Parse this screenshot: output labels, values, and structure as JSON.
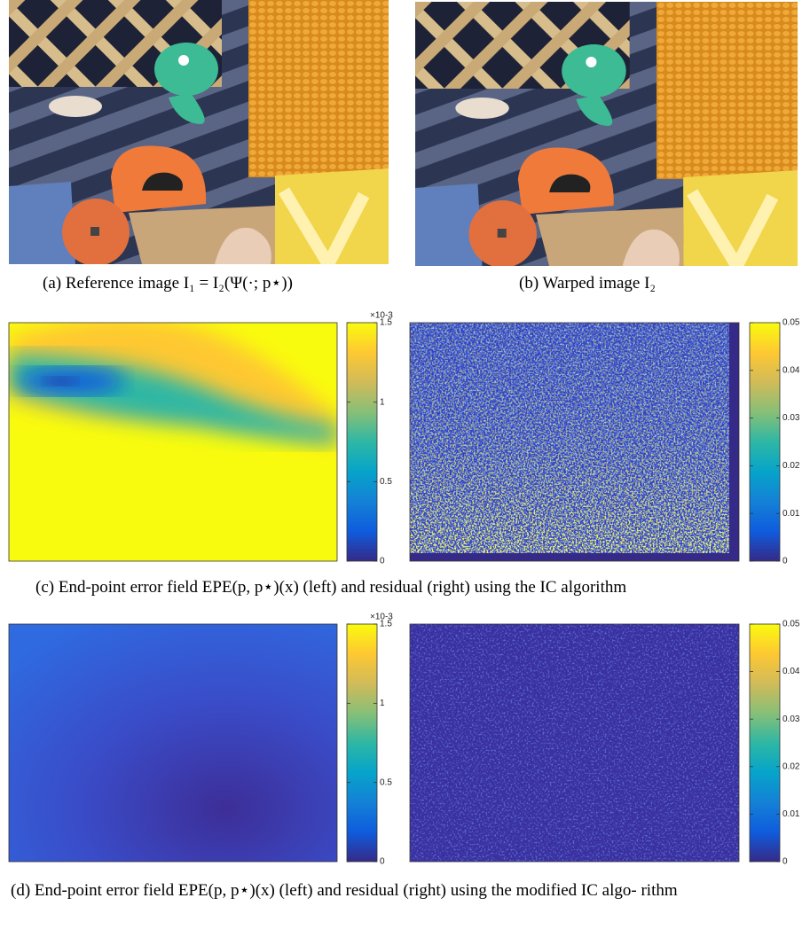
{
  "captions": {
    "a": "(a) Reference image I₁ = I₂(Ψ(·; p⋆))",
    "b": "(b) Warped image I₂",
    "c": "(c) End-point error field EPE(p, p⋆)(x) (left) and residual (right) using the IC algorithm",
    "d": "(d) End-point error field EPE(p, p⋆)(x) (left) and residual (right) using the modified IC algo- rithm"
  },
  "colorbars": [
    {
      "multiplier": "×10-3",
      "lim": [
        0,
        1.5
      ],
      "ticks": [
        0,
        0.5,
        1,
        1.5
      ]
    },
    {
      "lim": [
        0,
        0.05
      ],
      "ticks": [
        0,
        0.01,
        0.02,
        0.03,
        0.04,
        0.05
      ]
    },
    {
      "multiplier": "×10-3",
      "lim": [
        0,
        1.5
      ],
      "ticks": [
        0,
        0.5,
        1,
        1.5
      ]
    },
    {
      "lim": [
        0,
        0.05
      ],
      "ticks": [
        0,
        0.01,
        0.02,
        0.03,
        0.04,
        0.05
      ]
    }
  ]
}
